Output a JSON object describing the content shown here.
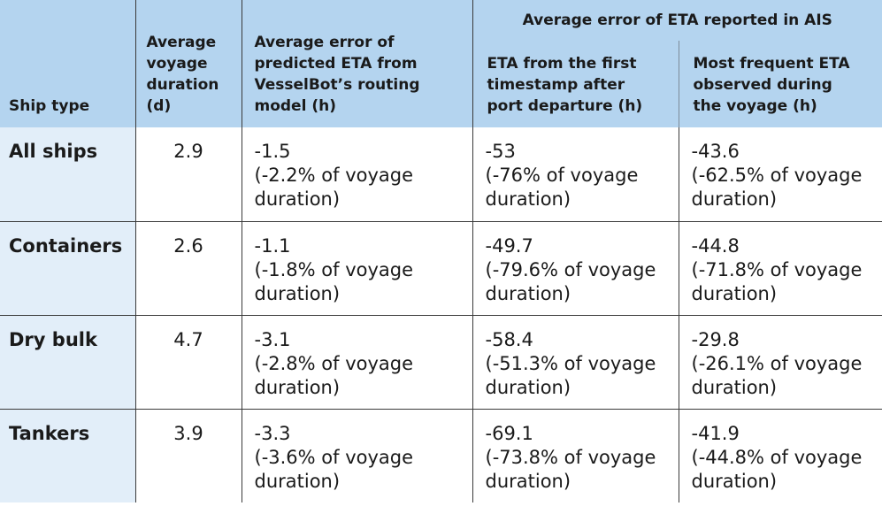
{
  "header": {
    "ship_type": "Ship type",
    "avg_duration": [
      "Average",
      "voyage",
      "duration",
      "(d)"
    ],
    "avg_error_pred": [
      "Average error of",
      "predicted ETA from",
      "VesselBot’s routing",
      "model (h)"
    ],
    "ais_group": "Average error of ETA reported in AIS",
    "ais_first": [
      "ETA from the first",
      "timestamp after",
      "port departure (h)"
    ],
    "ais_frequent": [
      "Most frequent ETA",
      "observed during",
      "the voyage (h)"
    ]
  },
  "rows": [
    {
      "ship_type": "All ships",
      "duration": "2.9",
      "pred": [
        "-1.5",
        "(-2.2% of voyage",
        "duration)"
      ],
      "ais_first": [
        "-53",
        "(-76% of voyage",
        "duration)"
      ],
      "ais_frequent": [
        "-43.6",
        "(-62.5% of voyage",
        "duration)"
      ]
    },
    {
      "ship_type": "Containers",
      "duration": "2.6",
      "pred": [
        "-1.1",
        "(-1.8% of voyage",
        "duration)"
      ],
      "ais_first": [
        "-49.7",
        "(-79.6% of voyage",
        "duration)"
      ],
      "ais_frequent": [
        "-44.8",
        "(-71.8% of voyage",
        "duration)"
      ]
    },
    {
      "ship_type": "Dry bulk",
      "duration": "4.7",
      "pred": [
        "-3.1",
        "(-2.8% of voyage",
        "duration)"
      ],
      "ais_first": [
        "-58.4",
        "(-51.3% of voyage",
        "duration)"
      ],
      "ais_frequent": [
        "-29.8",
        "(-26.1% of voyage",
        "duration)"
      ]
    },
    {
      "ship_type": "Tankers",
      "duration": "3.9",
      "pred": [
        "-3.3",
        "(-3.6% of voyage",
        "duration)"
      ],
      "ais_first": [
        "-69.1",
        "(-73.8% of voyage",
        "duration)"
      ],
      "ais_frequent": [
        "-41.9",
        "(-44.8% of voyage",
        "duration)"
      ]
    }
  ],
  "colors": {
    "header_bg": "#b4d4ef",
    "ship_col_bg": "#e2eef9",
    "body_bg": "#ffffff",
    "rule": "#3a3a3a"
  }
}
